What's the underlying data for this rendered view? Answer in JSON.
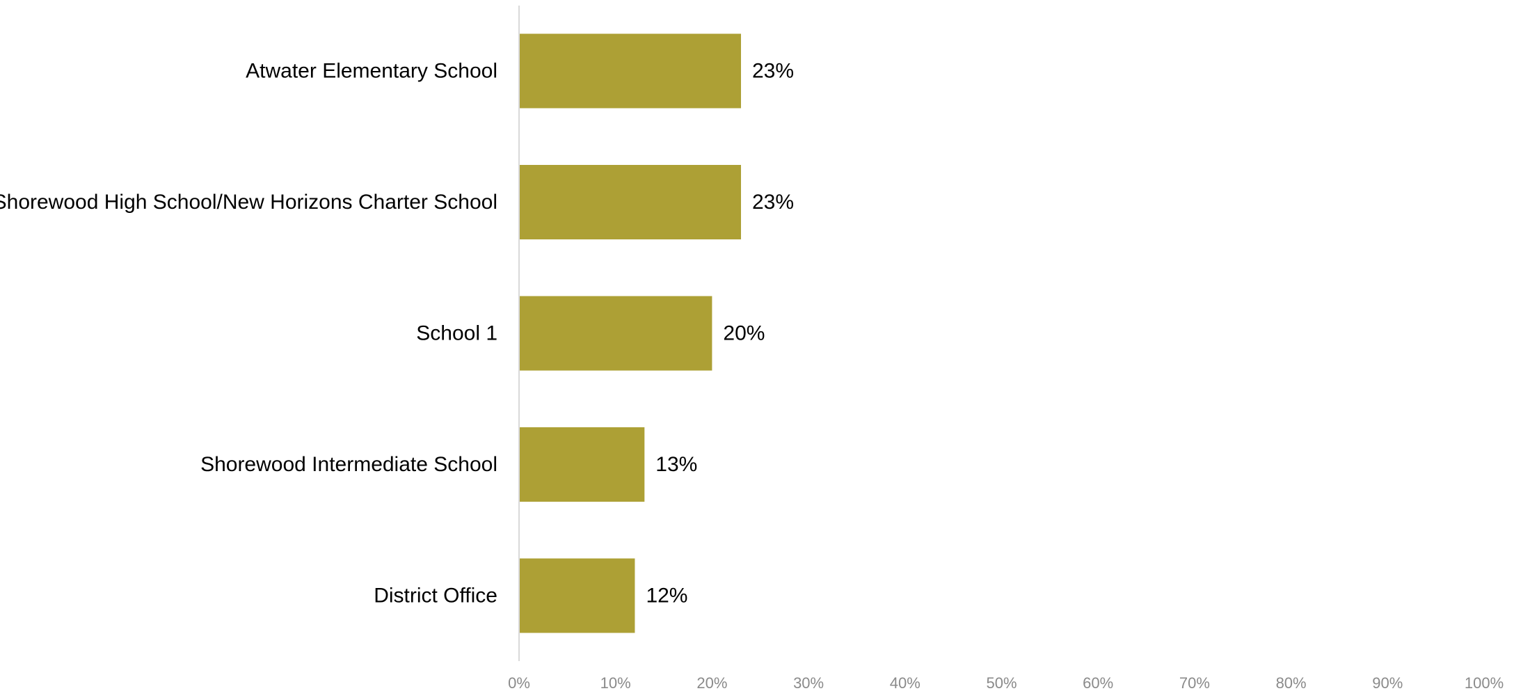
{
  "chart_data": {
    "type": "bar",
    "orientation": "horizontal",
    "categories": [
      "Atwater Elementary School",
      "Shorewood High School/New Horizons Charter School",
      "School 1",
      "Shorewood Intermediate School",
      "District Office"
    ],
    "values": [
      23,
      23,
      20,
      13,
      12
    ],
    "data_labels": [
      "23%",
      "23%",
      "20%",
      "13%",
      "12%"
    ],
    "title": "",
    "xlabel": "",
    "ylabel": "",
    "xlim": [
      0,
      100
    ],
    "x_ticks": [
      0,
      10,
      20,
      30,
      40,
      50,
      60,
      70,
      80,
      90,
      100
    ],
    "x_tick_labels": [
      "0%",
      "10%",
      "20%",
      "30%",
      "40%",
      "50%",
      "60%",
      "70%",
      "80%",
      "90%",
      "100%"
    ],
    "grid": false,
    "legend": "none",
    "colors": {
      "bar": "#ADA035",
      "axis_line": "#d9d9d9",
      "tick_text": "#8a8a8a",
      "label_text": "#000000"
    }
  }
}
